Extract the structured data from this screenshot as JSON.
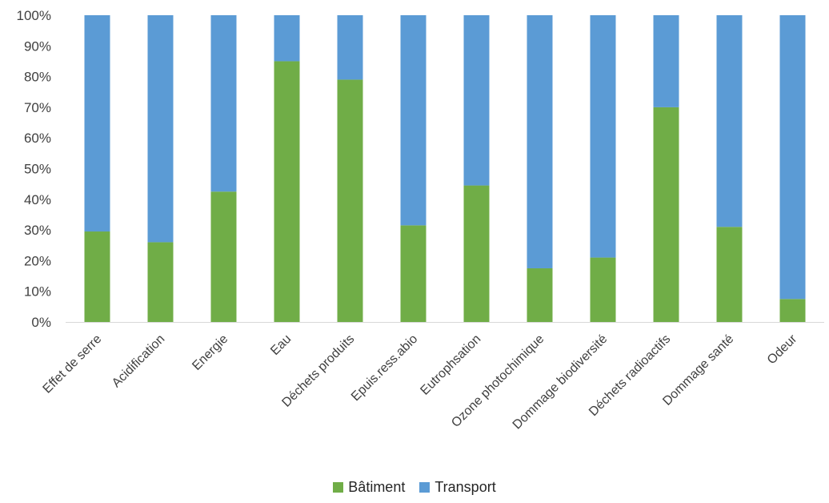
{
  "chart_data": {
    "type": "bar",
    "stacked": true,
    "percent": true,
    "categories": [
      "Effet de serre",
      "Acidification",
      "Energie",
      "Eau",
      "Déchets produits",
      "Epuis.ress.abio",
      "Eutrophsation",
      "Ozone photochimique",
      "Dommage biodiversité",
      "Déchets radioactifs",
      "Dommage santé",
      "Odeur"
    ],
    "series": [
      {
        "name": "Bâtiment",
        "color": "#70AD47",
        "values": [
          29.5,
          26,
          42.5,
          85,
          79,
          31.5,
          44.5,
          17.5,
          21,
          70,
          31,
          7.5
        ]
      },
      {
        "name": "Transport",
        "color": "#5B9BD5",
        "values": [
          70.5,
          74,
          57.5,
          15,
          21,
          68.5,
          55.5,
          82.5,
          79,
          30,
          69,
          92.5
        ]
      }
    ],
    "ylim": [
      0,
      100
    ],
    "yticks": [
      "0%",
      "10%",
      "20%",
      "30%",
      "40%",
      "50%",
      "60%",
      "70%",
      "80%",
      "90%",
      "100%"
    ],
    "grid": false,
    "legend_position": "bottom"
  }
}
